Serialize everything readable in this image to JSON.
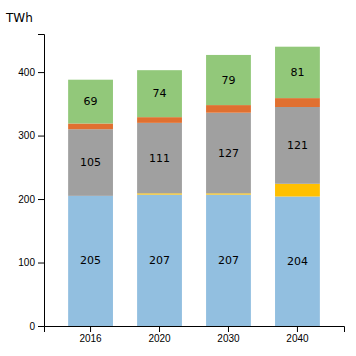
{
  "chart_data": {
    "type": "bar",
    "stacked": true,
    "grid": false,
    "ylabel": "TWh",
    "categories": [
      "2016",
      "2020",
      "2030",
      "2040"
    ],
    "series": [
      {
        "color": "#92BFE0",
        "values": [
          205,
          207,
          207,
          204
        ],
        "data_labels": true
      },
      {
        "color": "#FFC000",
        "values": [
          0,
          2,
          2,
          20
        ],
        "data_labels": false
      },
      {
        "color": "#A0A0A0",
        "values": [
          105,
          111,
          127,
          121
        ],
        "data_labels": true
      },
      {
        "color": "#E07030",
        "values": [
          9,
          9,
          12,
          14
        ],
        "data_labels": false
      },
      {
        "color": "#92C87A",
        "values": [
          69,
          74,
          79,
          81
        ],
        "data_labels": true
      }
    ],
    "ylim": [
      0,
      460
    ],
    "yticks": [
      0,
      100,
      200,
      300,
      400
    ]
  }
}
